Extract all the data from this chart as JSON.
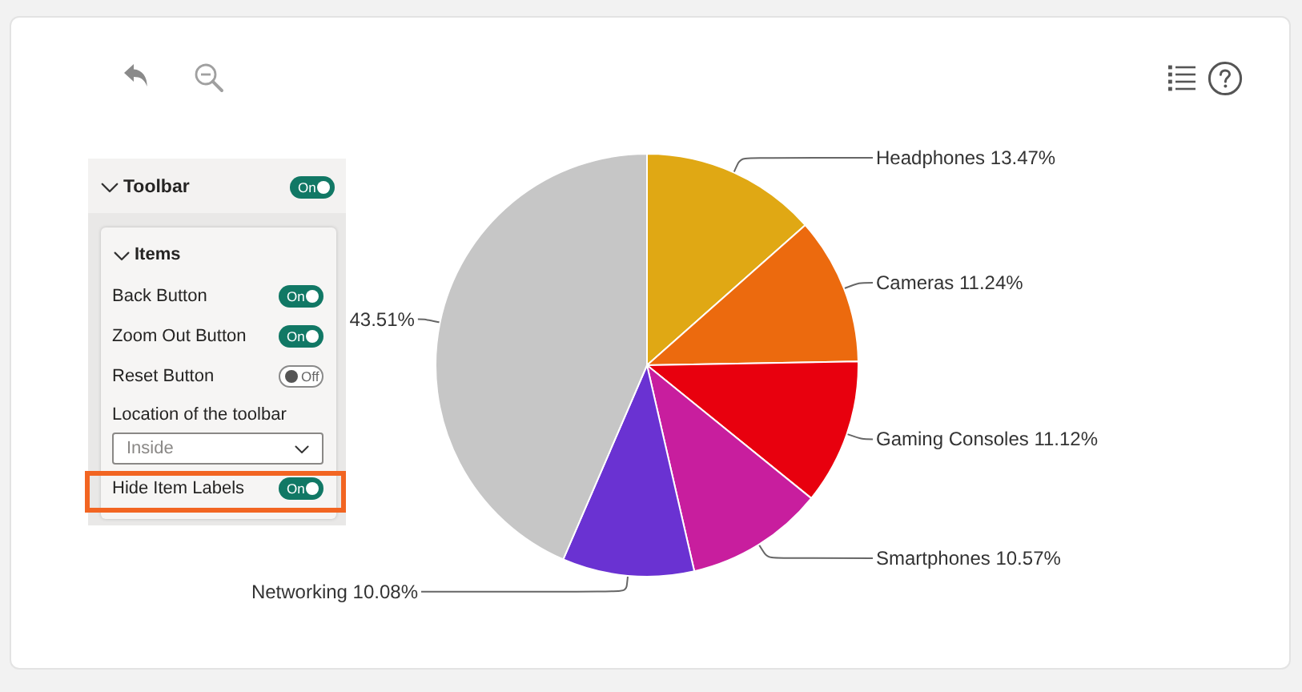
{
  "chart_data": [
    {
      "type": "pie",
      "categories": [
        "Headphones",
        "Cameras",
        "Gaming Consoles",
        "Smartphones",
        "Networking",
        null
      ],
      "values": [
        13.47,
        11.24,
        11.12,
        10.57,
        10.08,
        43.51
      ],
      "value_labels": [
        "13.47%",
        "11.24%",
        "11.12%",
        "10.57%",
        "10.08%",
        "43.51%"
      ],
      "colors": [
        "#e0a814",
        "#ec6a0e",
        "#e8000e",
        "#c81e9e",
        "#6a32d2",
        "#c6c6c6"
      ]
    },
    {
      "type": "other",
      "title": "Toolbar",
      "annotations": [
        "On",
        "Items",
        "Back Button",
        "On",
        "Zoom Out Button",
        "On",
        "Reset Button",
        "Off",
        "Location of the toolbar",
        "Inside",
        "Hide Item Labels",
        "On"
      ]
    }
  ]
}
